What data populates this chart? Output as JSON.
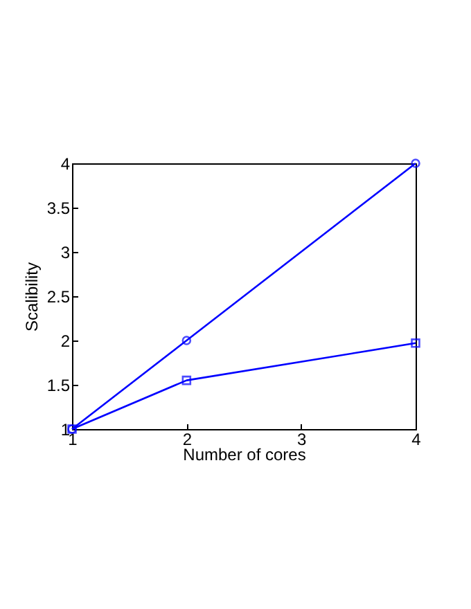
{
  "chart_data": {
    "type": "line",
    "xlabel": "Number of cores",
    "ylabel": "Scalibility",
    "x": [
      1,
      2,
      4
    ],
    "series": [
      {
        "color": "#0000ff",
        "marker": "circle",
        "values": [
          1,
          2,
          4
        ]
      },
      {
        "color": "#0000ff",
        "marker": "square",
        "values": [
          1,
          1.55,
          1.97
        ]
      }
    ],
    "xlim": [
      1,
      4
    ],
    "xticks": [
      1,
      2,
      3,
      4
    ],
    "ylim": [
      1,
      4
    ],
    "yticks": [
      1,
      1.5,
      2,
      2.5,
      3,
      3.5,
      4
    ],
    "grid": false,
    "line_style": "solid"
  }
}
